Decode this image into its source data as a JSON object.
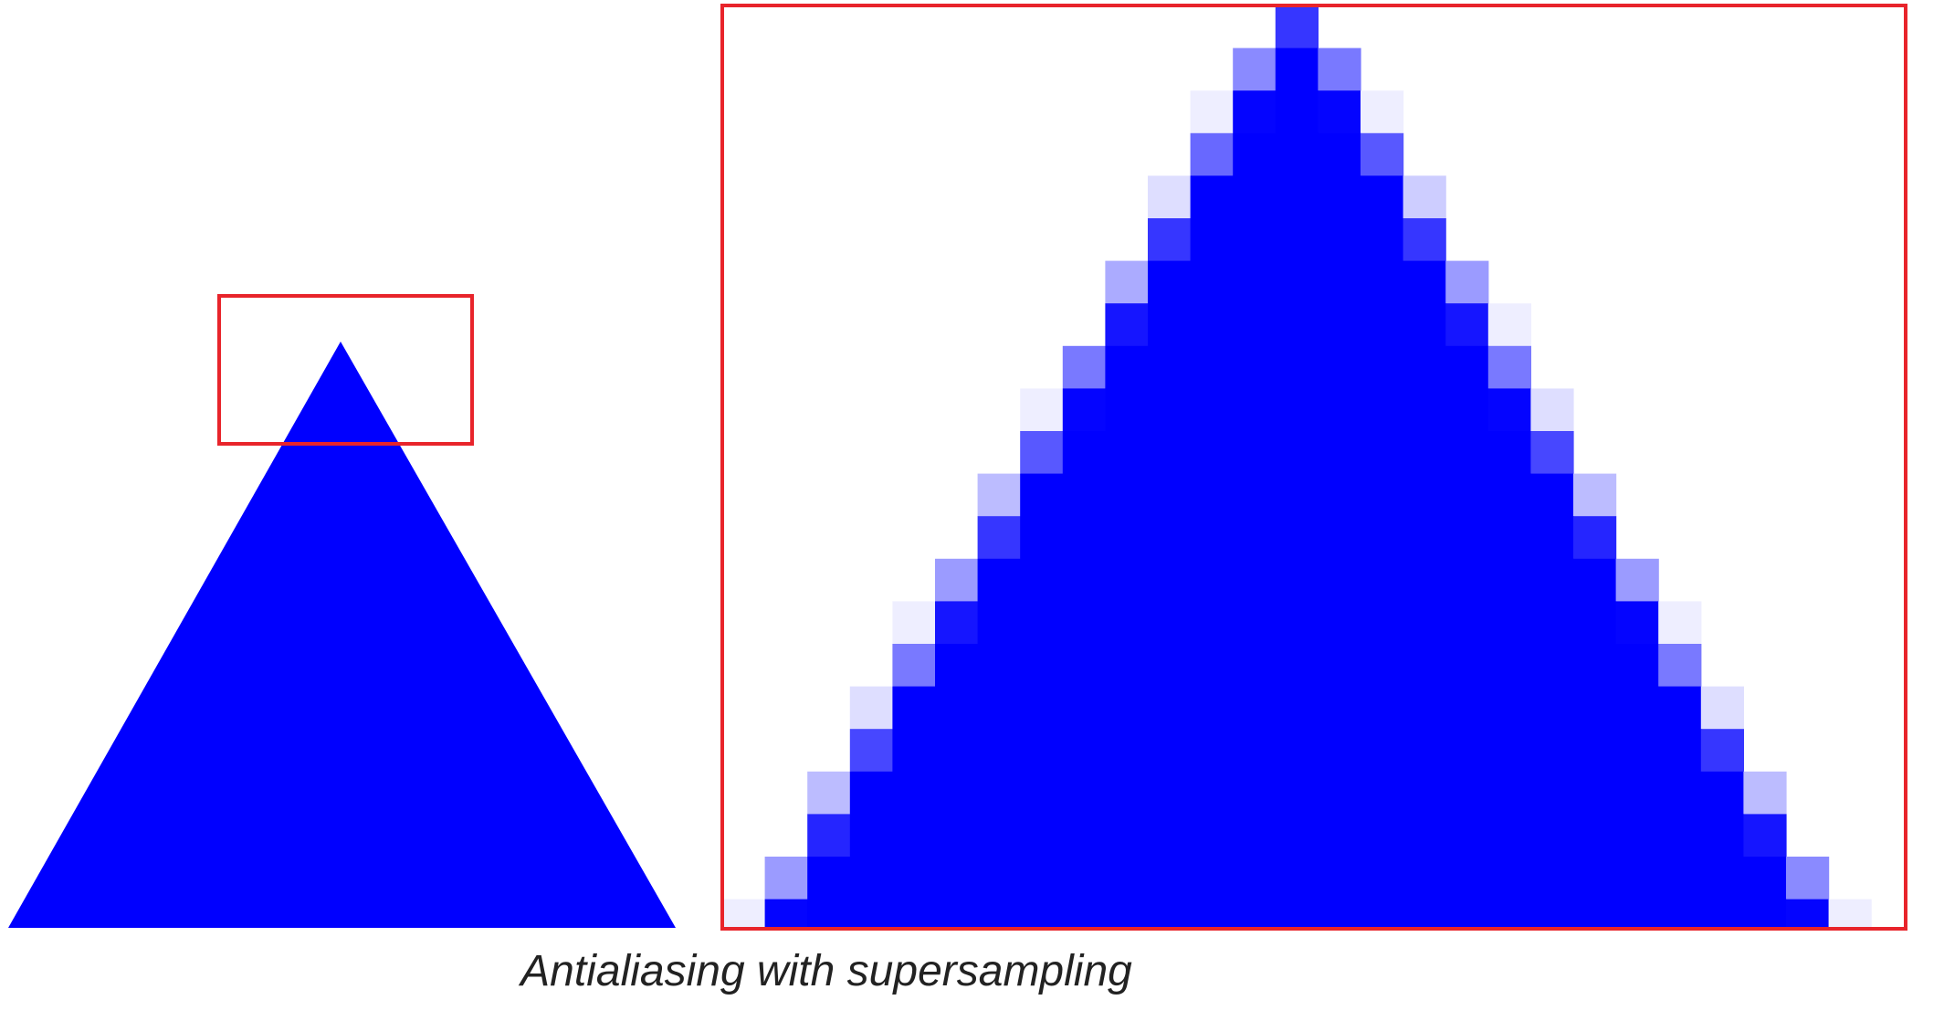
{
  "caption": "Antialiasing with supersampling",
  "colors": {
    "fill": "#0000ff",
    "highlight": "#e8242b",
    "background": "#ffffff"
  }
}
